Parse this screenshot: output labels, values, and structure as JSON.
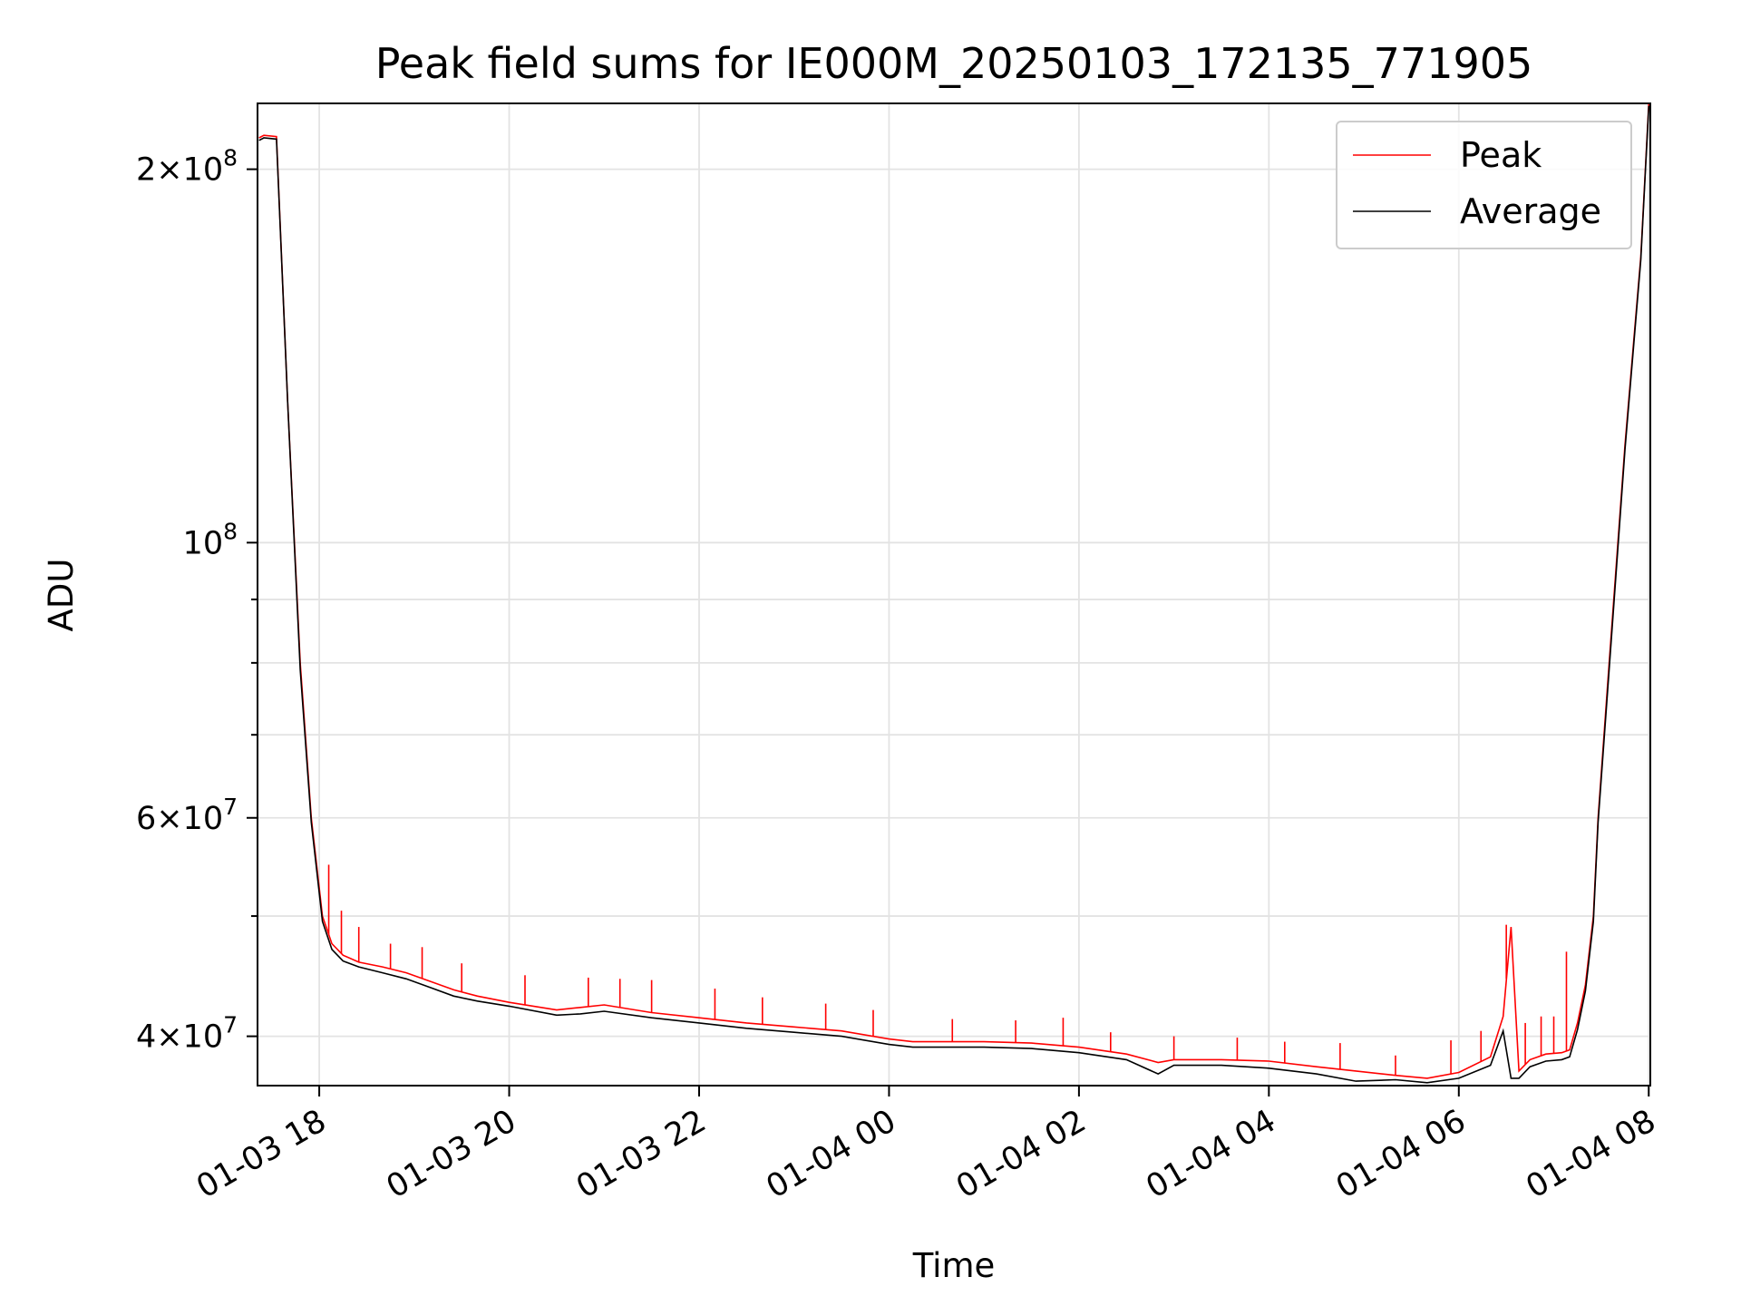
{
  "chart_data": {
    "type": "line",
    "title": "Peak field sums for IE000M_20250103_172135_771905",
    "xlabel": "Time",
    "ylabel": "ADU",
    "yscale": "log",
    "grid": true,
    "legend_position": "top-right",
    "x_range": [
      "2025-01-03 17:21",
      "2025-01-04 08:01"
    ],
    "y_range": [
      36500000,
      226000000
    ],
    "x_ticks": [
      {
        "label": "01-03 18",
        "value": "2025-01-03 18:00"
      },
      {
        "label": "01-03 20",
        "value": "2025-01-03 20:00"
      },
      {
        "label": "01-03 22",
        "value": "2025-01-03 22:00"
      },
      {
        "label": "01-04 00",
        "value": "2025-01-04 00:00"
      },
      {
        "label": "01-04 02",
        "value": "2025-01-04 02:00"
      },
      {
        "label": "01-04 04",
        "value": "2025-01-04 04:00"
      },
      {
        "label": "01-04 06",
        "value": "2025-01-04 06:00"
      },
      {
        "label": "01-04 08",
        "value": "2025-01-04 08:00"
      }
    ],
    "y_ticks": [
      {
        "base": "2",
        "mult": "×",
        "pow": "10",
        "exp": "8",
        "value": 200000000
      },
      {
        "base": "",
        "mult": "",
        "pow": "10",
        "exp": "8",
        "value": 100000000
      },
      {
        "base": "6",
        "mult": "×",
        "pow": "10",
        "exp": "7",
        "value": 60000000
      },
      {
        "base": "4",
        "mult": "×",
        "pow": "10",
        "exp": "7",
        "value": 40000000
      }
    ],
    "y_minor_ticks": [
      50000000,
      70000000,
      80000000,
      90000000
    ],
    "series": [
      {
        "name": "Peak",
        "color": "#ff0000",
        "x": [
          "2025-01-03 17:22",
          "2025-01-03 17:25",
          "2025-01-03 17:33",
          "2025-01-03 17:40",
          "2025-01-03 17:48",
          "2025-01-03 17:55",
          "2025-01-03 18:02",
          "2025-01-03 18:08",
          "2025-01-03 18:15",
          "2025-01-03 18:25",
          "2025-01-03 18:40",
          "2025-01-03 18:55",
          "2025-01-03 19:10",
          "2025-01-03 19:25",
          "2025-01-03 19:40",
          "2025-01-03 20:00",
          "2025-01-03 20:30",
          "2025-01-03 20:45",
          "2025-01-03 21:00",
          "2025-01-03 21:30",
          "2025-01-03 22:00",
          "2025-01-03 22:30",
          "2025-01-03 23:00",
          "2025-01-03 23:30",
          "2025-01-04 00:00",
          "2025-01-04 00:15",
          "2025-01-04 00:30",
          "2025-01-04 01:00",
          "2025-01-04 01:30",
          "2025-01-04 02:00",
          "2025-01-04 02:30",
          "2025-01-04 02:50",
          "2025-01-04 03:00",
          "2025-01-04 03:30",
          "2025-01-04 04:00",
          "2025-01-04 04:30",
          "2025-01-04 04:55",
          "2025-01-04 05:20",
          "2025-01-04 05:40",
          "2025-01-04 06:00",
          "2025-01-04 06:20",
          "2025-01-04 06:28",
          "2025-01-04 06:33",
          "2025-01-04 06:38",
          "2025-01-04 06:45",
          "2025-01-04 06:55",
          "2025-01-04 07:05",
          "2025-01-04 07:10",
          "2025-01-04 07:15",
          "2025-01-04 07:20",
          "2025-01-04 07:25",
          "2025-01-04 07:28",
          "2025-01-04 07:35",
          "2025-01-04 07:45",
          "2025-01-04 07:55",
          "2025-01-04 08:00"
        ],
        "y": [
          212000000,
          213000000,
          212500000,
          130000000,
          80000000,
          60000000,
          50000000,
          47500000,
          46500000,
          45900000,
          45500000,
          45000000,
          44300000,
          43600000,
          43100000,
          42600000,
          42000000,
          42200000,
          42400000,
          41800000,
          41400000,
          41000000,
          40700000,
          40400000,
          39800000,
          39600000,
          39600000,
          39600000,
          39500000,
          39200000,
          38700000,
          38100000,
          38300000,
          38300000,
          38200000,
          37800000,
          37500000,
          37200000,
          37000000,
          37400000,
          38500000,
          41500000,
          49000000,
          37500000,
          38300000,
          38700000,
          38800000,
          39000000,
          41000000,
          44000000,
          50000000,
          60000000,
          80000000,
          120000000,
          170000000,
          226000000
        ],
        "spikes": [
          {
            "x": "2025-01-03 18:06",
            "y": 55000000
          },
          {
            "x": "2025-01-03 18:14",
            "y": 50500000
          },
          {
            "x": "2025-01-03 18:25",
            "y": 49000000
          },
          {
            "x": "2025-01-03 18:45",
            "y": 47500000
          },
          {
            "x": "2025-01-03 19:05",
            "y": 47200000
          },
          {
            "x": "2025-01-03 19:30",
            "y": 45800000
          },
          {
            "x": "2025-01-03 20:10",
            "y": 44800000
          },
          {
            "x": "2025-01-03 20:50",
            "y": 44600000
          },
          {
            "x": "2025-01-03 21:10",
            "y": 44500000
          },
          {
            "x": "2025-01-03 21:30",
            "y": 44400000
          },
          {
            "x": "2025-01-03 22:10",
            "y": 43700000
          },
          {
            "x": "2025-01-03 22:40",
            "y": 43000000
          },
          {
            "x": "2025-01-03 23:20",
            "y": 42500000
          },
          {
            "x": "2025-01-03 23:50",
            "y": 42000000
          },
          {
            "x": "2025-01-04 00:40",
            "y": 41300000
          },
          {
            "x": "2025-01-04 01:20",
            "y": 41200000
          },
          {
            "x": "2025-01-04 01:50",
            "y": 41400000
          },
          {
            "x": "2025-01-04 02:20",
            "y": 40300000
          },
          {
            "x": "2025-01-04 03:00",
            "y": 40000000
          },
          {
            "x": "2025-01-04 03:40",
            "y": 39900000
          },
          {
            "x": "2025-01-04 04:10",
            "y": 39600000
          },
          {
            "x": "2025-01-04 04:45",
            "y": 39500000
          },
          {
            "x": "2025-01-04 05:20",
            "y": 38600000
          },
          {
            "x": "2025-01-04 05:55",
            "y": 39700000
          },
          {
            "x": "2025-01-04 06:14",
            "y": 40400000
          },
          {
            "x": "2025-01-04 06:30",
            "y": 49200000
          },
          {
            "x": "2025-01-04 06:42",
            "y": 41000000
          },
          {
            "x": "2025-01-04 06:52",
            "y": 41500000
          },
          {
            "x": "2025-01-04 07:00",
            "y": 41500000
          },
          {
            "x": "2025-01-04 07:08",
            "y": 46800000
          }
        ]
      },
      {
        "name": "Average",
        "color": "#000000",
        "x": [
          "2025-01-03 17:22",
          "2025-01-03 17:25",
          "2025-01-03 17:33",
          "2025-01-03 17:40",
          "2025-01-03 17:48",
          "2025-01-03 17:55",
          "2025-01-03 18:02",
          "2025-01-03 18:08",
          "2025-01-03 18:15",
          "2025-01-03 18:25",
          "2025-01-03 18:40",
          "2025-01-03 18:55",
          "2025-01-03 19:10",
          "2025-01-03 19:25",
          "2025-01-03 19:40",
          "2025-01-03 20:00",
          "2025-01-03 20:30",
          "2025-01-03 20:45",
          "2025-01-03 21:00",
          "2025-01-03 21:30",
          "2025-01-03 22:00",
          "2025-01-03 22:30",
          "2025-01-03 23:00",
          "2025-01-03 23:30",
          "2025-01-04 00:00",
          "2025-01-04 00:15",
          "2025-01-04 00:30",
          "2025-01-04 01:00",
          "2025-01-04 01:30",
          "2025-01-04 02:00",
          "2025-01-04 02:30",
          "2025-01-04 02:50",
          "2025-01-04 03:00",
          "2025-01-04 03:30",
          "2025-01-04 04:00",
          "2025-01-04 04:30",
          "2025-01-04 04:55",
          "2025-01-04 05:20",
          "2025-01-04 05:40",
          "2025-01-04 06:00",
          "2025-01-04 06:20",
          "2025-01-04 06:28",
          "2025-01-04 06:33",
          "2025-01-04 06:38",
          "2025-01-04 06:45",
          "2025-01-04 06:55",
          "2025-01-04 07:05",
          "2025-01-04 07:10",
          "2025-01-04 07:15",
          "2025-01-04 07:20",
          "2025-01-04 07:25",
          "2025-01-04 07:28",
          "2025-01-04 07:35",
          "2025-01-04 07:45",
          "2025-01-04 07:55",
          "2025-01-04 08:00"
        ],
        "y": [
          211000000,
          212000000,
          211500000,
          130000000,
          79000000,
          59500000,
          49500000,
          47000000,
          46000000,
          45500000,
          45000000,
          44500000,
          43800000,
          43100000,
          42700000,
          42300000,
          41600000,
          41700000,
          41900000,
          41400000,
          41000000,
          40600000,
          40300000,
          40000000,
          39400000,
          39200000,
          39200000,
          39200000,
          39100000,
          38800000,
          38300000,
          37300000,
          37900000,
          37900000,
          37700000,
          37300000,
          36800000,
          36900000,
          36700000,
          37000000,
          37900000,
          40400000,
          37000000,
          37000000,
          37800000,
          38200000,
          38300000,
          38500000,
          40500000,
          43500000,
          49500000,
          59500000,
          79000000,
          119000000,
          169000000,
          225000000
        ]
      }
    ]
  }
}
